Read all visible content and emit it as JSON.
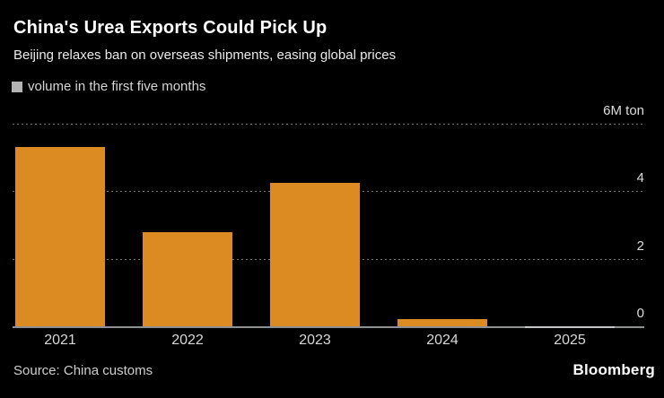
{
  "chart_data": {
    "type": "bar",
    "title": "China's Urea Exports Could Pick Up",
    "subtitle": "Beijing relaxes ban on overseas shipments, easing global prices",
    "legend": {
      "label": "volume in the first five months",
      "swatch_color": "#b3b3b3",
      "position": "top-left"
    },
    "categories": [
      "2021",
      "2022",
      "2023",
      "2024",
      "2025"
    ],
    "values": [
      5.3,
      2.8,
      4.25,
      0.2,
      0.02
    ],
    "xlabel": "",
    "ylabel": "",
    "ylim": [
      0,
      6
    ],
    "y_ticks": [
      {
        "value": 6,
        "label": "6M ton"
      },
      {
        "value": 4,
        "label": "4"
      },
      {
        "value": 2,
        "label": "2"
      },
      {
        "value": 0,
        "label": "0"
      }
    ],
    "grid": "dotted-horizontal",
    "axis_side": "right",
    "bar_color": "#dc8a22",
    "near_zero_bar_color": "#c3c7ca",
    "background_color": "#000000"
  },
  "footer": {
    "source": "Source: China customs",
    "brand": "Bloomberg"
  }
}
